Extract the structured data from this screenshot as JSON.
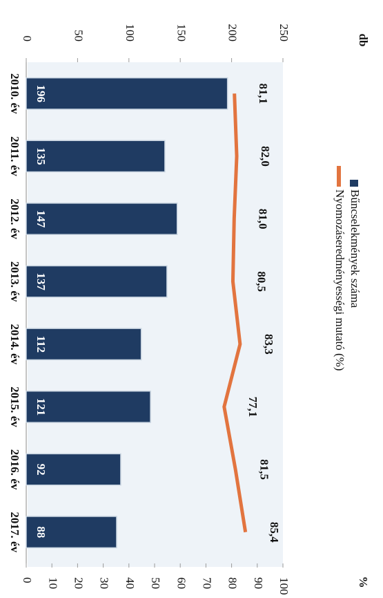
{
  "chart_data": {
    "type": "bar_line",
    "y_unit": "db",
    "y2_unit": "%",
    "categories": [
      "2010. év",
      "2011. év",
      "2012. év",
      "2013. év",
      "2014. év",
      "2015. év",
      "2016. év",
      "2017. év"
    ],
    "series": [
      {
        "name": "Bűncselekmények száma",
        "type": "bar",
        "color": "#1f3b62",
        "values": [
          196,
          135,
          147,
          137,
          112,
          121,
          92,
          88
        ]
      },
      {
        "name": "Nyomozáseredményességi mutató (%)",
        "type": "line",
        "axis": "y2",
        "color": "#e2743f",
        "values": [
          81.1,
          82.0,
          81.0,
          80.5,
          83.3,
          77.1,
          81.5,
          85.4
        ],
        "value_labels": [
          "81,1",
          "82,0",
          "81,0",
          "80,5",
          "83,3",
          "77,1",
          "81,5",
          "85,4"
        ]
      }
    ],
    "ylim": [
      0,
      250
    ],
    "yticks": [
      0,
      50,
      100,
      150,
      200,
      250
    ],
    "y2lim": [
      0,
      100
    ],
    "y2ticks": [
      0,
      10,
      20,
      30,
      40,
      50,
      60,
      70,
      80,
      90,
      100
    ]
  }
}
